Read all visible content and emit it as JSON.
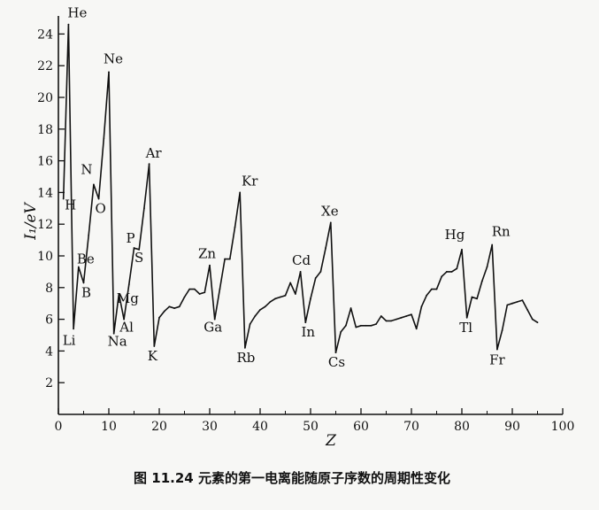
{
  "chart_data": {
    "type": "line",
    "xlabel": "Z",
    "ylabel": "I₁/eV",
    "xlim": [
      0,
      100
    ],
    "ylim": [
      0,
      25
    ],
    "xticks": [
      0,
      10,
      20,
      30,
      40,
      50,
      60,
      70,
      80,
      90,
      100
    ],
    "yticks": [
      2,
      4,
      6,
      8,
      10,
      12,
      14,
      16,
      18,
      20,
      22,
      24
    ],
    "grid": false,
    "caption": "图 11.24  元素的第一电离能随原子序数的周期性变化",
    "series": [
      {
        "x": [
          1,
          2,
          3,
          4,
          5,
          6,
          7,
          8,
          9,
          10,
          11,
          12,
          13,
          14,
          15,
          16,
          17,
          18,
          19,
          20,
          21,
          22,
          23,
          24,
          25,
          26,
          27,
          28,
          29,
          30,
          31,
          32,
          33,
          34,
          35,
          36,
          37,
          38,
          39,
          40,
          41,
          42,
          43,
          44,
          45,
          46,
          47,
          48,
          49,
          50,
          51,
          52,
          53,
          54,
          55,
          56,
          57,
          58,
          59,
          60,
          61,
          62,
          63,
          64,
          65,
          66,
          67,
          68,
          69,
          70,
          71,
          72,
          73,
          74,
          75,
          76,
          77,
          78,
          79,
          80,
          81,
          82,
          83,
          84,
          85,
          86,
          87,
          88,
          89,
          90,
          91,
          92,
          93,
          94,
          95
        ],
        "y": [
          13.6,
          24.6,
          5.4,
          9.3,
          8.3,
          11.3,
          14.5,
          13.6,
          17.4,
          21.6,
          5.1,
          7.6,
          6.0,
          8.2,
          10.5,
          10.4,
          13.0,
          15.8,
          4.3,
          6.1,
          6.5,
          6.8,
          6.7,
          6.8,
          7.4,
          7.9,
          7.9,
          7.6,
          7.7,
          9.4,
          6.0,
          7.9,
          9.8,
          9.8,
          11.8,
          14.0,
          4.2,
          5.7,
          6.2,
          6.6,
          6.8,
          7.1,
          7.3,
          7.4,
          7.5,
          8.3,
          7.6,
          9.0,
          5.8,
          7.3,
          8.6,
          9.0,
          10.5,
          12.1,
          3.9,
          5.2,
          5.6,
          6.7,
          5.5,
          5.6,
          5.6,
          5.6,
          5.7,
          6.2,
          5.9,
          5.9,
          6.0,
          6.1,
          6.2,
          6.3,
          5.4,
          6.8,
          7.5,
          7.9,
          7.9,
          8.7,
          9.0,
          9.0,
          9.2,
          10.4,
          6.1,
          7.4,
          7.3,
          8.4,
          9.3,
          10.7,
          4.1,
          5.3,
          6.9,
          7.0,
          7.1,
          7.2,
          6.6,
          6.0,
          5.8
        ]
      }
    ],
    "annotations": [
      {
        "label": "H",
        "x": 1,
        "y": 13.6
      },
      {
        "label": "He",
        "x": 2,
        "y": 24.6
      },
      {
        "label": "Li",
        "x": 3,
        "y": 5.4
      },
      {
        "label": "Be",
        "x": 4,
        "y": 9.3
      },
      {
        "label": "B",
        "x": 5,
        "y": 8.3
      },
      {
        "label": "N",
        "x": 7,
        "y": 14.5
      },
      {
        "label": "O",
        "x": 8,
        "y": 13.6
      },
      {
        "label": "Ne",
        "x": 10,
        "y": 21.6
      },
      {
        "label": "Na",
        "x": 11,
        "y": 5.1
      },
      {
        "label": "Mg",
        "x": 12,
        "y": 7.6
      },
      {
        "label": "Al",
        "x": 13,
        "y": 6.0
      },
      {
        "label": "P",
        "x": 15,
        "y": 10.5
      },
      {
        "label": "S",
        "x": 16,
        "y": 10.4
      },
      {
        "label": "Ar",
        "x": 18,
        "y": 15.8
      },
      {
        "label": "K",
        "x": 19,
        "y": 4.3
      },
      {
        "label": "Zn",
        "x": 30,
        "y": 9.4
      },
      {
        "label": "Ga",
        "x": 31,
        "y": 6.0
      },
      {
        "label": "Kr",
        "x": 36,
        "y": 14.0
      },
      {
        "label": "Rb",
        "x": 37,
        "y": 4.2
      },
      {
        "label": "Cd",
        "x": 48,
        "y": 9.0
      },
      {
        "label": "In",
        "x": 49,
        "y": 5.8
      },
      {
        "label": "Xe",
        "x": 54,
        "y": 12.1
      },
      {
        "label": "Cs",
        "x": 55,
        "y": 3.9
      },
      {
        "label": "Hg",
        "x": 80,
        "y": 10.4
      },
      {
        "label": "Tl",
        "x": 81,
        "y": 6.1
      },
      {
        "label": "Rn",
        "x": 86,
        "y": 10.7
      },
      {
        "label": "Fr",
        "x": 87,
        "y": 4.1
      }
    ]
  }
}
